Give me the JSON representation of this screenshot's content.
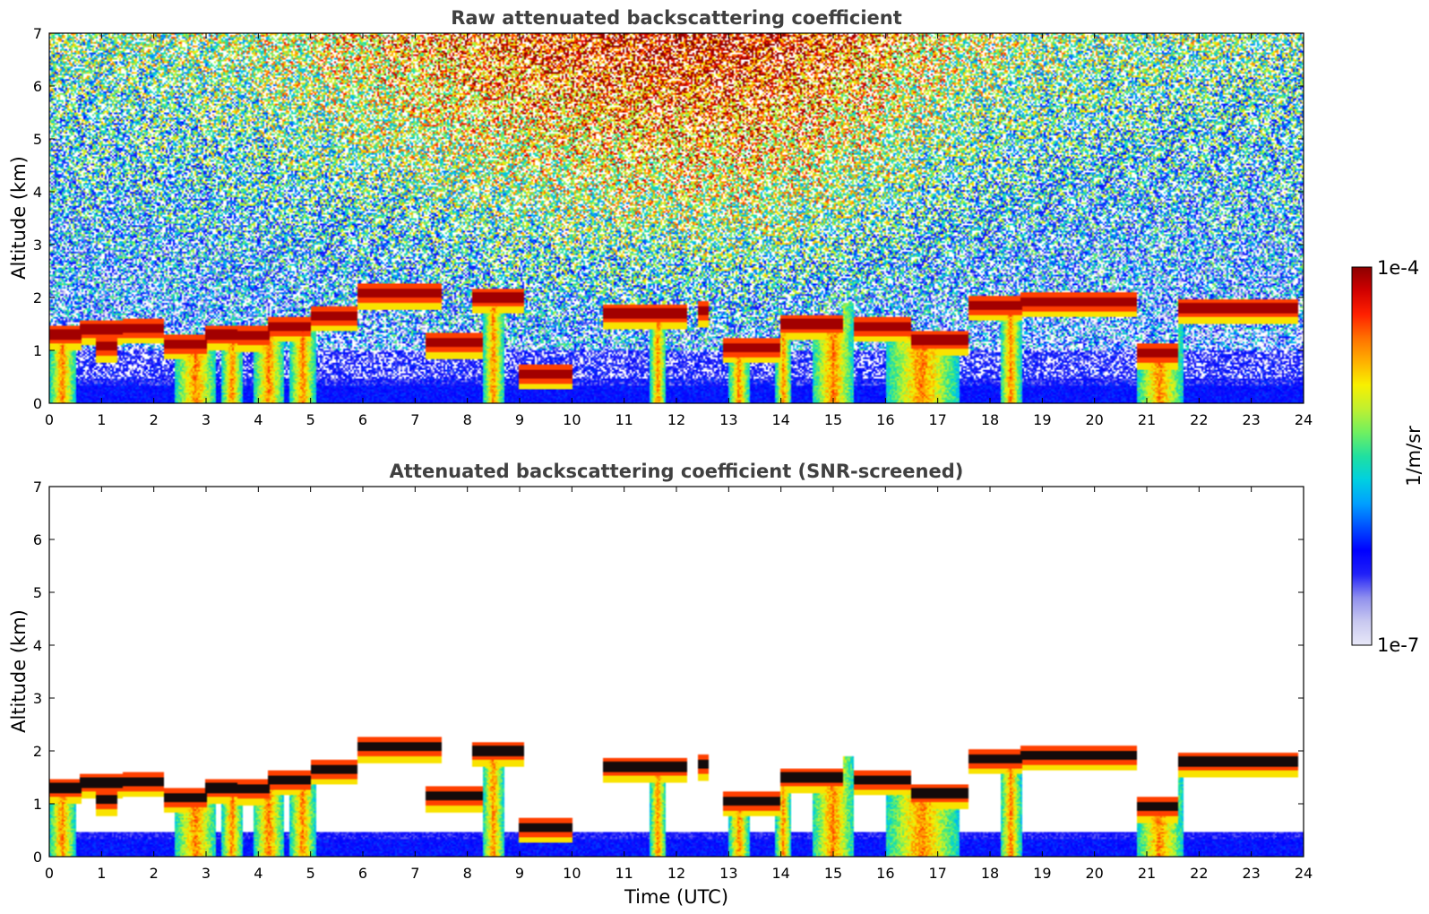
{
  "chart_data": [
    {
      "type": "heatmap",
      "title": "Raw attenuated backscattering coefficient",
      "xlabel": "",
      "ylabel": "Altitude (km)",
      "xlim": [
        0,
        24
      ],
      "ylim": [
        0,
        7
      ],
      "xticks": [
        "0",
        "1",
        "2",
        "3",
        "4",
        "5",
        "6",
        "7",
        "8",
        "9",
        "10",
        "11",
        "12",
        "13",
        "14",
        "15",
        "16",
        "17",
        "18",
        "19",
        "20",
        "21",
        "22",
        "23",
        "24"
      ],
      "yticks": [
        "0",
        "1",
        "2",
        "3",
        "4",
        "5",
        "6",
        "7"
      ],
      "screened": false
    },
    {
      "type": "heatmap",
      "title": "Attenuated backscattering coefficient (SNR-screened)",
      "xlabel": "Time (UTC)",
      "ylabel": "Altitude (km)",
      "xlim": [
        0,
        24
      ],
      "ylim": [
        0,
        7
      ],
      "xticks": [
        "0",
        "1",
        "2",
        "3",
        "4",
        "5",
        "6",
        "7",
        "8",
        "9",
        "10",
        "11",
        "12",
        "13",
        "14",
        "15",
        "16",
        "17",
        "18",
        "19",
        "20",
        "21",
        "22",
        "23",
        "24"
      ],
      "yticks": [
        "0",
        "1",
        "2",
        "3",
        "4",
        "5",
        "6",
        "7"
      ],
      "screened": true
    }
  ],
  "colorbar": {
    "label": "1/m/sr",
    "max_label": "1e-4",
    "min_label": "1e-7",
    "scale": "log",
    "colors": [
      "#e8e8f8",
      "#c8c8f0",
      "#9090ee",
      "#2020f8",
      "#0000ff",
      "#0050ff",
      "#00a0ff",
      "#00d0e0",
      "#20e0a0",
      "#70f060",
      "#c0f030",
      "#f8f000",
      "#ffb000",
      "#ff7000",
      "#ff2000",
      "#d00000",
      "#8c0000"
    ]
  },
  "cloud_layers": {
    "description_units": "time in hours UTC, altitude in km",
    "segments": [
      {
        "t0": 0.0,
        "t1": 0.6,
        "z": 1.3
      },
      {
        "t0": 0.6,
        "t1": 1.4,
        "z": 1.4
      },
      {
        "t0": 0.9,
        "t1": 1.3,
        "z": 1.08
      },
      {
        "t0": 1.4,
        "t1": 2.2,
        "z": 1.42
      },
      {
        "t0": 2.2,
        "t1": 3.0,
        "z": 1.12
      },
      {
        "t0": 3.0,
        "t1": 3.6,
        "z": 1.3
      },
      {
        "t0": 3.6,
        "t1": 4.2,
        "z": 1.28
      },
      {
        "t0": 4.2,
        "t1": 5.0,
        "z": 1.45
      },
      {
        "t0": 5.0,
        "t1": 5.9,
        "z": 1.65
      },
      {
        "t0": 5.9,
        "t1": 7.5,
        "z": 2.08
      },
      {
        "t0": 7.2,
        "t1": 8.3,
        "z": 1.15
      },
      {
        "t0": 8.1,
        "t1": 9.1,
        "z": 2.0
      },
      {
        "t0": 9.0,
        "t1": 10.0,
        "z": 0.55
      },
      {
        "t0": 10.6,
        "t1": 12.2,
        "z": 1.7
      },
      {
        "t0": 12.4,
        "t1": 12.6,
        "z": 1.75
      },
      {
        "t0": 12.9,
        "t1": 14.0,
        "z": 1.05
      },
      {
        "t0": 14.0,
        "t1": 15.2,
        "z": 1.5
      },
      {
        "t0": 15.4,
        "t1": 16.5,
        "z": 1.45
      },
      {
        "t0": 16.5,
        "t1": 17.6,
        "z": 1.2
      },
      {
        "t0": 17.6,
        "t1": 18.6,
        "z": 1.85
      },
      {
        "t0": 18.6,
        "t1": 20.8,
        "z": 1.92
      },
      {
        "t0": 20.8,
        "t1": 21.6,
        "z": 0.95
      },
      {
        "t0": 21.6,
        "t1": 23.9,
        "z": 1.8
      }
    ],
    "precip_columns": [
      {
        "t0": 0.0,
        "t1": 0.5
      },
      {
        "t0": 2.4,
        "t1": 3.2
      },
      {
        "t0": 3.3,
        "t1": 3.7
      },
      {
        "t0": 3.9,
        "t1": 4.5
      },
      {
        "t0": 4.6,
        "t1": 5.1
      },
      {
        "t0": 8.3,
        "t1": 8.7
      },
      {
        "t0": 11.5,
        "t1": 11.8
      },
      {
        "t0": 13.0,
        "t1": 13.4
      },
      {
        "t0": 13.9,
        "t1": 14.2
      },
      {
        "t0": 14.6,
        "t1": 15.4
      },
      {
        "t0": 16.0,
        "t1": 17.4
      },
      {
        "t0": 18.2,
        "t1": 18.6
      },
      {
        "t0": 20.8,
        "t1": 21.7
      }
    ]
  }
}
